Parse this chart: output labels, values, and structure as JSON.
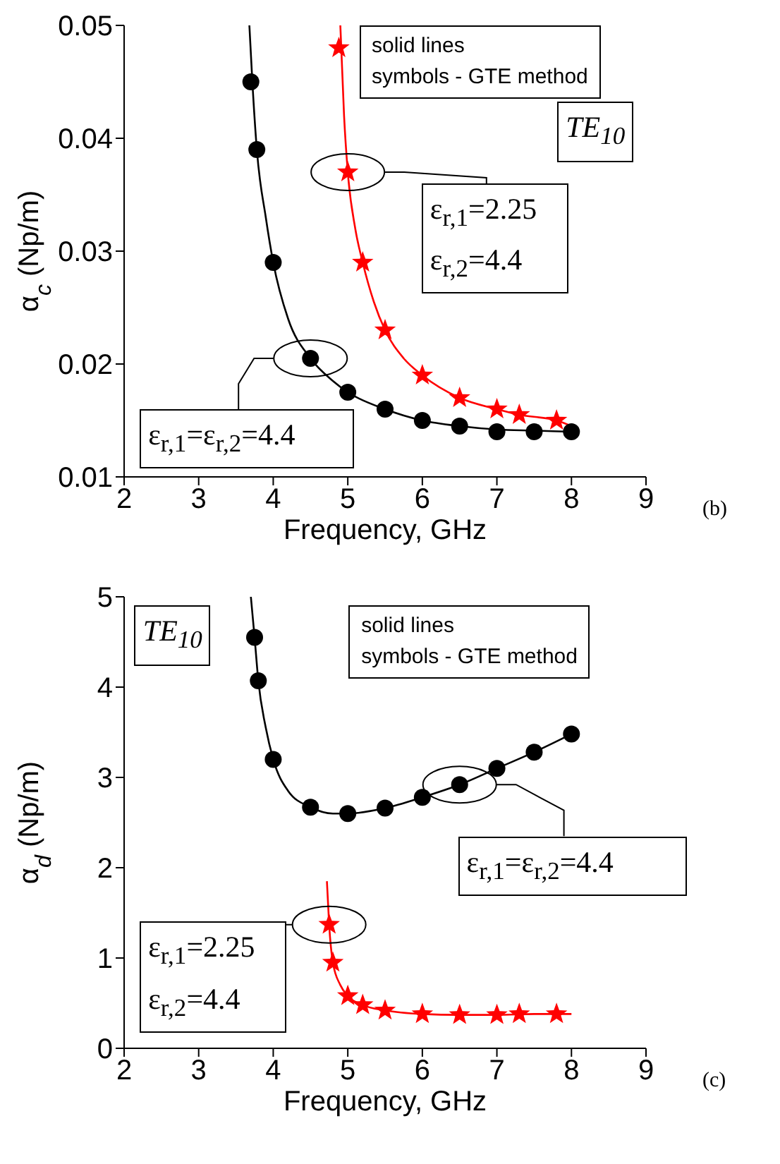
{
  "chart_data": [
    {
      "type": "scatter",
      "ylabel": "α$_{c}$ (Np/m)",
      "xlabel": "Frequency, GHz",
      "xlim": [
        2,
        9
      ],
      "xticks": [
        2,
        3,
        4,
        5,
        6,
        7,
        8,
        9
      ],
      "ylim": [
        0.01,
        0.05
      ],
      "yticks": [
        0.01,
        0.02,
        0.03,
        0.04,
        0.05
      ],
      "grid": false,
      "series": [
        {
          "type": "line",
          "color": "#000000",
          "marker": "none",
          "x": [
            3.68,
            3.72,
            3.78,
            3.9,
            4.0,
            4.2,
            4.5,
            4.8,
            5.0,
            5.5,
            6.0,
            6.5,
            7.0,
            7.5,
            8.0
          ],
          "values": [
            0.05,
            0.045,
            0.039,
            0.033,
            0.029,
            0.024,
            0.0205,
            0.0185,
            0.0175,
            0.016,
            0.015,
            0.0145,
            0.0142,
            0.0141,
            0.014
          ]
        },
        {
          "type": "line",
          "color": "#ff0000",
          "marker": "none",
          "x": [
            4.9,
            4.95,
            5.0,
            5.1,
            5.2,
            5.35,
            5.5,
            5.75,
            6.0,
            6.5,
            7.0,
            7.3,
            7.8,
            8.0
          ],
          "values": [
            0.05,
            0.042,
            0.037,
            0.032,
            0.029,
            0.0255,
            0.023,
            0.0205,
            0.019,
            0.017,
            0.016,
            0.0155,
            0.015,
            0.0145
          ]
        },
        {
          "color": "#000000",
          "marker": "circle",
          "x": [
            3.7,
            3.78,
            4.0,
            4.5,
            5.0,
            5.5,
            6.0,
            6.5,
            7.0,
            7.5,
            8.0
          ],
          "values": [
            0.045,
            0.039,
            0.029,
            0.0205,
            0.0175,
            0.016,
            0.015,
            0.0145,
            0.014,
            0.014,
            0.014
          ]
        },
        {
          "color": "#ff0000",
          "marker": "star",
          "x": [
            4.88,
            5.0,
            5.2,
            5.5,
            6.0,
            6.5,
            7.0,
            7.3,
            7.8
          ],
          "values": [
            0.048,
            0.037,
            0.029,
            0.023,
            0.019,
            0.017,
            0.016,
            0.0155,
            0.015
          ]
        }
      ],
      "annotations": [
        "solid lines",
        "symbols - GTE method",
        "TE$_{10}$",
        {
          "text": "ε$_{r,1}$=2.25\nε$_{r,2}$=4.4",
          "x": 5.0,
          "y": 0.037
        },
        {
          "text": "ε$_{r,1}$=ε$_{r,2}$=4.4",
          "x": 4.5,
          "y": 0.0205
        },
        "(b)"
      ]
    },
    {
      "type": "scatter",
      "ylabel": "α$_{d}$ (Np/m)",
      "xlabel": "Frequency, GHz",
      "xlim": [
        2,
        9
      ],
      "xticks": [
        2,
        3,
        4,
        5,
        6,
        7,
        8,
        9
      ],
      "ylim": [
        0,
        5
      ],
      "yticks": [
        0,
        1,
        2,
        3,
        4,
        5
      ],
      "grid": false,
      "series": [
        {
          "type": "line",
          "color": "#000000",
          "marker": "none",
          "x": [
            3.7,
            3.75,
            3.8,
            3.9,
            4.0,
            4.2,
            4.5,
            4.8,
            5.0,
            5.5,
            6.0,
            6.5,
            7.0,
            7.5,
            8.0
          ],
          "values": [
            5,
            4.55,
            4.07,
            3.55,
            3.2,
            2.85,
            2.67,
            2.6,
            2.6,
            2.66,
            2.78,
            2.92,
            3.1,
            3.28,
            3.48
          ]
        },
        {
          "type": "line",
          "color": "#ff0000",
          "marker": "none",
          "x": [
            4.72,
            4.75,
            4.8,
            4.9,
            5.0,
            5.2,
            5.5,
            6.0,
            6.5,
            7.0,
            7.5,
            8.0
          ],
          "values": [
            1.85,
            1.37,
            0.95,
            0.7,
            0.58,
            0.48,
            0.42,
            0.38,
            0.37,
            0.37,
            0.38,
            0.38
          ]
        },
        {
          "color": "#000000",
          "marker": "circle",
          "x": [
            3.75,
            3.8,
            4.0,
            4.5,
            5.0,
            5.5,
            6.0,
            6.5,
            7.0,
            7.5,
            8.0
          ],
          "values": [
            4.55,
            4.07,
            3.2,
            2.67,
            2.6,
            2.66,
            2.78,
            2.92,
            3.1,
            3.28,
            3.48
          ]
        },
        {
          "color": "#ff0000",
          "marker": "star",
          "x": [
            4.75,
            4.8,
            5.0,
            5.2,
            5.5,
            6.0,
            6.5,
            7.0,
            7.3,
            7.8
          ],
          "values": [
            1.37,
            0.95,
            0.58,
            0.48,
            0.42,
            0.38,
            0.37,
            0.37,
            0.38,
            0.38
          ]
        }
      ],
      "annotations": [
        "solid lines",
        "symbols - GTE method",
        "TE$_{10}$",
        {
          "text": "ε$_{r,1}$=ε$_{r,2}$=4.4",
          "x": 6.5,
          "y": 2.92
        },
        {
          "text": "ε$_{r,1}$=2.25\nε$_{r,2}$=4.4",
          "x": 4.75,
          "y": 1.37
        },
        "(c)"
      ]
    }
  ]
}
